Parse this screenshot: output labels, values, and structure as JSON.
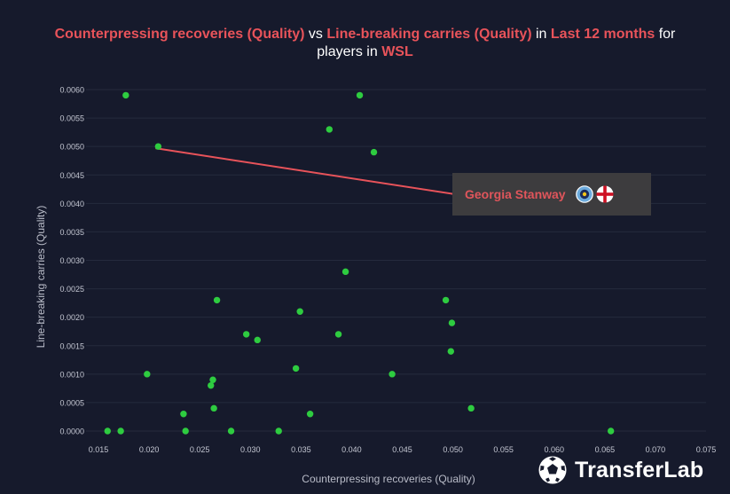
{
  "title": {
    "metric_y": "Counterpressing recoveries (Quality)",
    "vs": " vs ",
    "metric_x": "Line-breaking carries (Quality)",
    "in": " in ",
    "period": "Last 12 months",
    "for": " for",
    "players_in": "players in ",
    "league": "WSL"
  },
  "tooltip": {
    "player": "Georgia Stanway",
    "club_icon": "club-crest-icon",
    "flag_icon": "england-flag-icon"
  },
  "brand": {
    "name": "TransferLab",
    "icon": "football-icon"
  },
  "colors": {
    "background": "#161a2c",
    "point": "#2ecc40",
    "highlight": "#e8535a",
    "grid": "#252a3d",
    "tooltip_bg": "#3d3c3e"
  },
  "chart_data": {
    "type": "scatter",
    "xlabel": "Counterpressing recoveries (Quality)",
    "ylabel": "Line-breaking carries (Quality)",
    "xlim": [
      0.015,
      0.075
    ],
    "ylim": [
      0,
      0.006
    ],
    "x_ticks": [
      "0.015",
      "0.020",
      "0.025",
      "0.030",
      "0.035",
      "0.040",
      "0.045",
      "0.050",
      "0.055",
      "0.060",
      "0.065",
      "0.070",
      "0.075"
    ],
    "y_ticks": [
      "0.0000",
      "0.0005",
      "0.0010",
      "0.0015",
      "0.0020",
      "0.0025",
      "0.0030",
      "0.0035",
      "0.0040",
      "0.0045",
      "0.0050",
      "0.0055",
      "0.0060"
    ],
    "highlighted": {
      "name": "Georgia Stanway",
      "x": 0.0209,
      "y": 0.005
    },
    "points": [
      {
        "x": 0.0177,
        "y": 0.0059
      },
      {
        "x": 0.0408,
        "y": 0.0059
      },
      {
        "x": 0.0378,
        "y": 0.0053
      },
      {
        "x": 0.0209,
        "y": 0.005
      },
      {
        "x": 0.0422,
        "y": 0.0049
      },
      {
        "x": 0.0394,
        "y": 0.0028
      },
      {
        "x": 0.0267,
        "y": 0.0023
      },
      {
        "x": 0.0493,
        "y": 0.0023
      },
      {
        "x": 0.0349,
        "y": 0.0021
      },
      {
        "x": 0.0499,
        "y": 0.0019
      },
      {
        "x": 0.0296,
        "y": 0.0017
      },
      {
        "x": 0.0387,
        "y": 0.0017
      },
      {
        "x": 0.0307,
        "y": 0.0016
      },
      {
        "x": 0.0498,
        "y": 0.0014
      },
      {
        "x": 0.0345,
        "y": 0.0011
      },
      {
        "x": 0.0198,
        "y": 0.001
      },
      {
        "x": 0.044,
        "y": 0.001
      },
      {
        "x": 0.0263,
        "y": 0.0009
      },
      {
        "x": 0.0261,
        "y": 0.0008
      },
      {
        "x": 0.0264,
        "y": 0.0004
      },
      {
        "x": 0.0518,
        "y": 0.0004
      },
      {
        "x": 0.0234,
        "y": 0.0003
      },
      {
        "x": 0.0359,
        "y": 0.0003
      },
      {
        "x": 0.0159,
        "y": 0.0
      },
      {
        "x": 0.0172,
        "y": 0.0
      },
      {
        "x": 0.0236,
        "y": 0.0
      },
      {
        "x": 0.0281,
        "y": 0.0
      },
      {
        "x": 0.0328,
        "y": 0.0
      },
      {
        "x": 0.0656,
        "y": 0.0
      }
    ]
  }
}
